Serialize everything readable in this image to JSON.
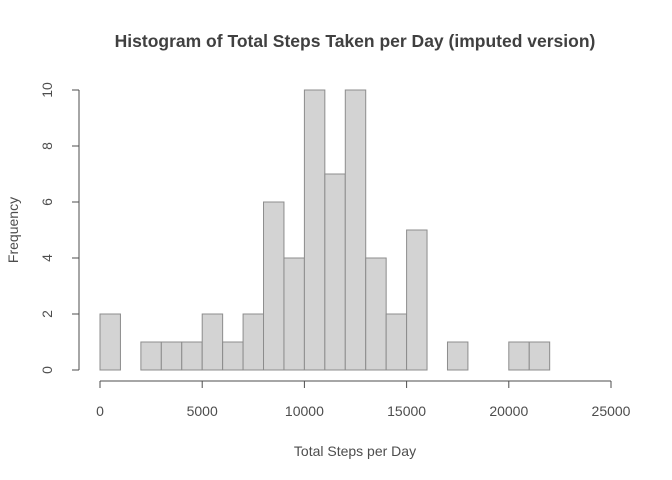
{
  "chart_data": {
    "type": "bar",
    "title": "Histogram of Total Steps Taken per Day (imputed version)",
    "xlabel": "Total Steps per Day",
    "ylabel": "Frequency",
    "bin_width": 1000,
    "bins": [
      {
        "start": 0,
        "end": 1000,
        "count": 2
      },
      {
        "start": 1000,
        "end": 2000,
        "count": 0
      },
      {
        "start": 2000,
        "end": 3000,
        "count": 1
      },
      {
        "start": 3000,
        "end": 4000,
        "count": 1
      },
      {
        "start": 4000,
        "end": 5000,
        "count": 1
      },
      {
        "start": 5000,
        "end": 6000,
        "count": 2
      },
      {
        "start": 6000,
        "end": 7000,
        "count": 1
      },
      {
        "start": 7000,
        "end": 8000,
        "count": 2
      },
      {
        "start": 8000,
        "end": 9000,
        "count": 6
      },
      {
        "start": 9000,
        "end": 10000,
        "count": 4
      },
      {
        "start": 10000,
        "end": 11000,
        "count": 10
      },
      {
        "start": 11000,
        "end": 12000,
        "count": 7
      },
      {
        "start": 12000,
        "end": 13000,
        "count": 10
      },
      {
        "start": 13000,
        "end": 14000,
        "count": 4
      },
      {
        "start": 14000,
        "end": 15000,
        "count": 2
      },
      {
        "start": 15000,
        "end": 16000,
        "count": 5
      },
      {
        "start": 16000,
        "end": 17000,
        "count": 0
      },
      {
        "start": 17000,
        "end": 18000,
        "count": 1
      },
      {
        "start": 18000,
        "end": 19000,
        "count": 0
      },
      {
        "start": 19000,
        "end": 20000,
        "count": 0
      },
      {
        "start": 20000,
        "end": 21000,
        "count": 1
      },
      {
        "start": 21000,
        "end": 22000,
        "count": 1
      }
    ],
    "xlim": [
      0,
      25000
    ],
    "ylim": [
      0,
      10
    ],
    "x_ticks": [
      0,
      5000,
      10000,
      15000,
      20000,
      25000
    ],
    "x_tick_labels": [
      "0",
      "5000",
      "10000",
      "15000",
      "20000",
      "25000"
    ],
    "y_ticks": [
      0,
      2,
      4,
      6,
      8,
      10
    ],
    "y_tick_labels": [
      "0",
      "2",
      "4",
      "6",
      "8",
      "10"
    ],
    "colors": {
      "bar_fill": "#d3d3d3",
      "bar_border": "#8c8c8c",
      "text": "#4d4d4d"
    },
    "grid": false
  }
}
